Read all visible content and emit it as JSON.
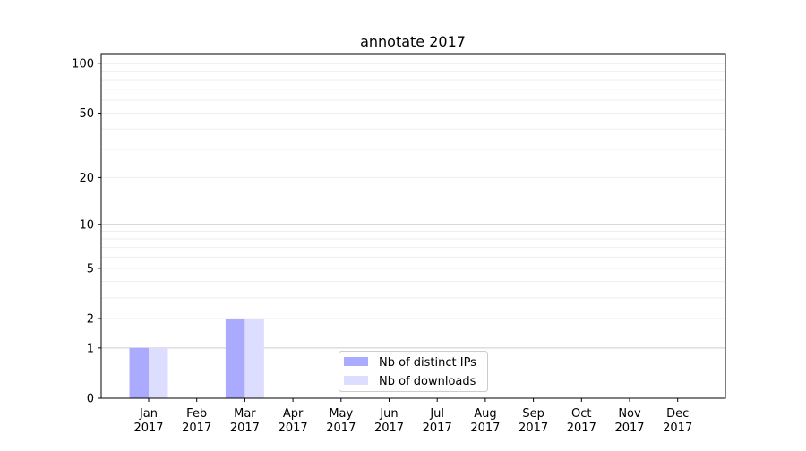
{
  "chart_data": {
    "type": "bar",
    "title": "annotate 2017",
    "xlabel": "",
    "ylabel": "",
    "categories": [
      "Jan\n2017",
      "Feb\n2017",
      "Mar\n2017",
      "Apr\n2017",
      "May\n2017",
      "Jun\n2017",
      "Jul\n2017",
      "Aug\n2017",
      "Sep\n2017",
      "Oct\n2017",
      "Nov\n2017",
      "Dec\n2017"
    ],
    "series": [
      {
        "name": "Nb of distinct IPs",
        "color": "#aaaaff",
        "values": [
          1,
          0,
          2,
          0,
          0,
          0,
          0,
          0,
          0,
          0,
          0,
          0
        ]
      },
      {
        "name": "Nb of downloads",
        "color": "#ddddff",
        "values": [
          1,
          0,
          2,
          0,
          0,
          0,
          0,
          0,
          0,
          0,
          0,
          0
        ]
      }
    ],
    "yscale": "log(y+1)",
    "yticks": [
      0,
      1,
      2,
      5,
      10,
      20,
      50,
      100
    ],
    "ylim": [
      0,
      115
    ],
    "grid": true,
    "legend_position": "lower-center"
  }
}
